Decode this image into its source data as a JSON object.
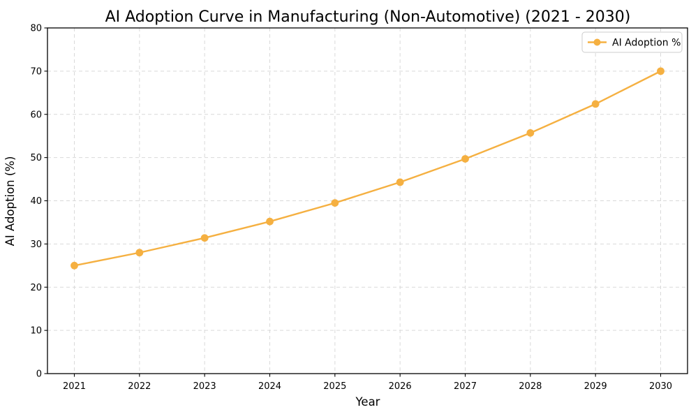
{
  "chart_data": {
    "type": "line",
    "title": "AI Adoption Curve in Manufacturing (Non-Automotive) (2021 - 2030)",
    "xlabel": "Year",
    "ylabel": "AI Adoption (%)",
    "categories": [
      "2021",
      "2022",
      "2023",
      "2024",
      "2025",
      "2026",
      "2027",
      "2028",
      "2029",
      "2030"
    ],
    "series": [
      {
        "name": "AI Adoption %",
        "values": [
          25.0,
          28.0,
          31.4,
          35.2,
          39.5,
          44.3,
          49.7,
          55.7,
          62.4,
          70.0
        ]
      }
    ],
    "ylim": [
      0,
      80
    ],
    "yticks": [
      0,
      10,
      20,
      30,
      40,
      50,
      60,
      70,
      80
    ],
    "grid": true,
    "grid_style": "dashed",
    "legend_position": "top-right",
    "colors": {
      "series": "#F5B041",
      "grid": "#d9d9d9",
      "spine": "#000000",
      "text": "#000000",
      "legend_border": "#cccccc",
      "background": "#ffffff"
    }
  }
}
